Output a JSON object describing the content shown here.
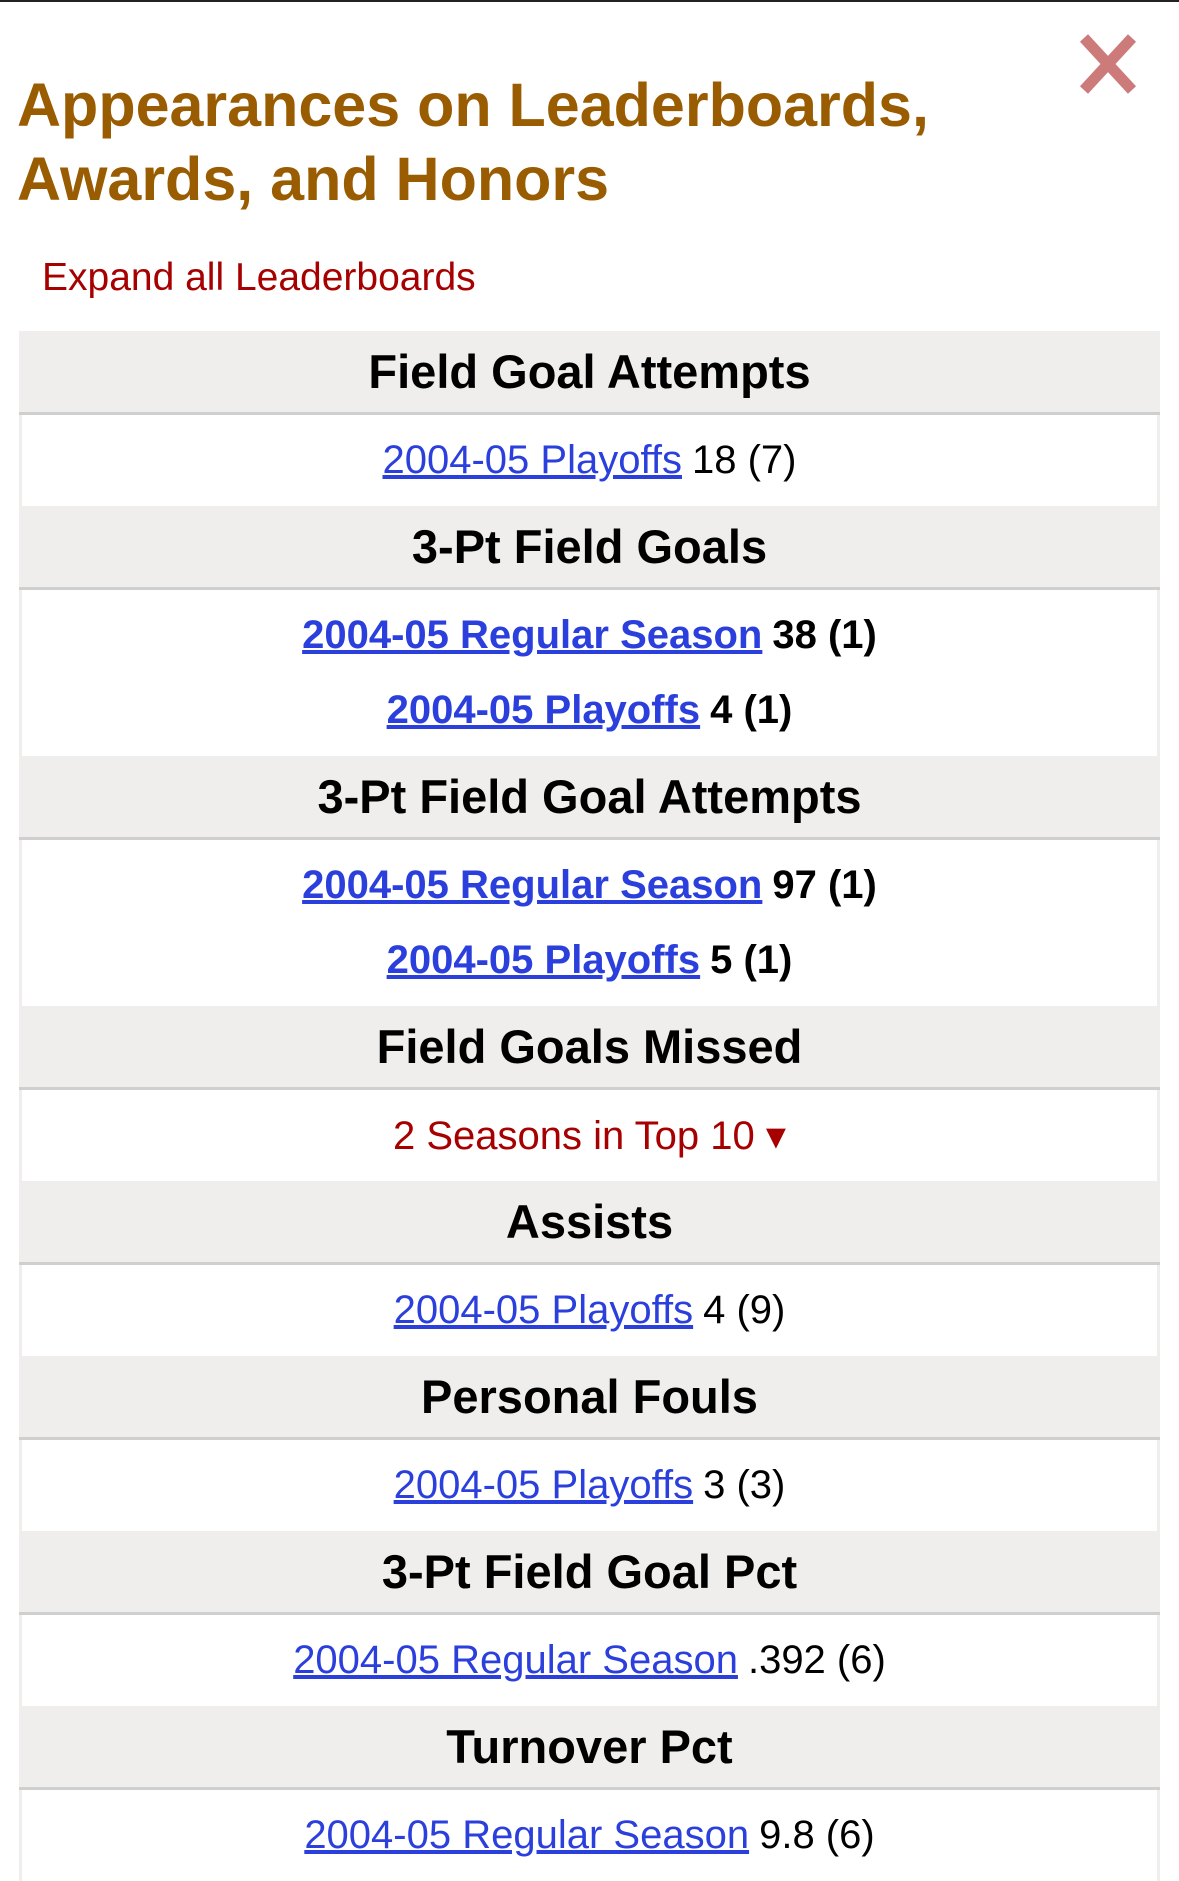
{
  "title": "Appearances on Leaderboards, Awards, and Honors",
  "close_icon": "close-x-icon",
  "expand_all": "Expand all Leaderboards",
  "colors": {
    "title": "#9a5c00",
    "link": "#2b3fdc",
    "accent_red": "#a60000",
    "header_bg": "#efeeed"
  },
  "sections": [
    {
      "header": "Field Goal Attempts",
      "entries": [
        {
          "link": "2004-05 Playoffs",
          "value": "18 (7)",
          "bold": false
        }
      ]
    },
    {
      "header": "3-Pt Field Goals",
      "entries": [
        {
          "link": "2004-05 Regular Season",
          "value": "38 (1)",
          "bold": true
        },
        {
          "link": "2004-05 Playoffs",
          "value": "4 (1)",
          "bold": true
        }
      ]
    },
    {
      "header": "3-Pt Field Goal Attempts",
      "entries": [
        {
          "link": "2004-05 Regular Season",
          "value": "97 (1)",
          "bold": true
        },
        {
          "link": "2004-05 Playoffs",
          "value": "5 (1)",
          "bold": true
        }
      ]
    },
    {
      "header": "Field Goals Missed",
      "more": "2 Seasons in Top 10 ▾"
    },
    {
      "header": "Assists",
      "entries": [
        {
          "link": "2004-05 Playoffs",
          "value": "4 (9)",
          "bold": false
        }
      ]
    },
    {
      "header": "Personal Fouls",
      "entries": [
        {
          "link": "2004-05 Playoffs",
          "value": "3 (3)",
          "bold": false
        }
      ]
    },
    {
      "header": "3-Pt Field Goal Pct",
      "entries": [
        {
          "link": "2004-05 Regular Season",
          "value": ".392 (6)",
          "bold": false
        }
      ]
    },
    {
      "header": "Turnover Pct",
      "entries": [
        {
          "link": "2004-05 Regular Season",
          "value": "9.8 (6)",
          "bold": false
        }
      ]
    }
  ]
}
